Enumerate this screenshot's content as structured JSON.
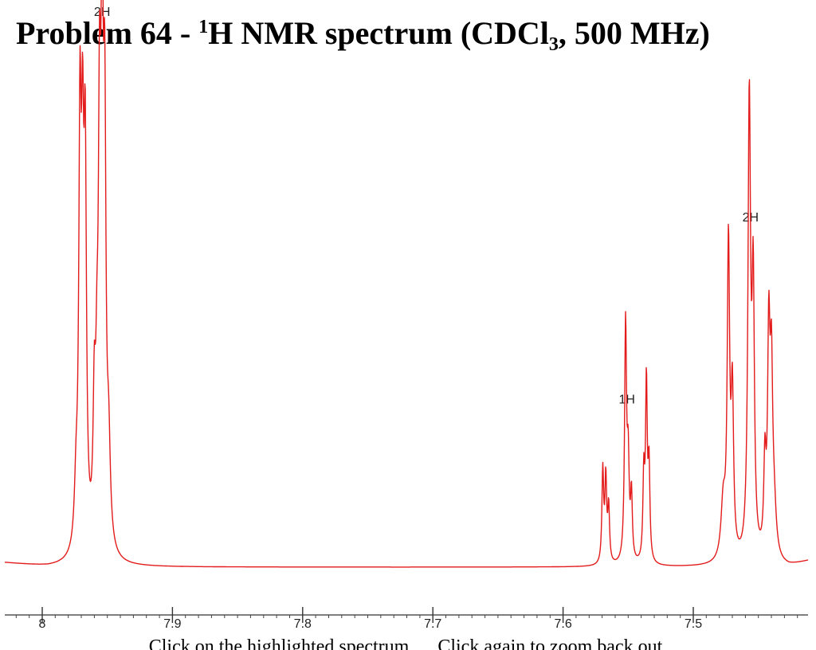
{
  "title": {
    "prefix": "Problem 64 - ",
    "sup": "1",
    "nucleus": "H NMR spectrum (CDCl",
    "sub": "3",
    "suffix": ", 500 MHz)"
  },
  "instruction": "Click on the highlighted spectrum … Click again to zoom back out.",
  "chart_data": {
    "type": "line",
    "xlabel": "",
    "ylabel": "",
    "x_unit": "ppm",
    "x_axis_reversed": true,
    "xlim": [
      8.03,
      7.41
    ],
    "x_ticks": [
      {
        "value": 8.0,
        "label": "8"
      },
      {
        "value": 7.9,
        "label": "7.9"
      },
      {
        "value": 7.8,
        "label": "7.8"
      },
      {
        "value": 7.7,
        "label": "7.7"
      },
      {
        "value": 7.6,
        "label": "7.6"
      },
      {
        "value": 7.5,
        "label": "7.5"
      }
    ],
    "ylim": [
      0,
      1
    ],
    "line_color": "#e31b1b",
    "baseline_level": 0.0,
    "peaks": [
      {
        "ppm": 7.971,
        "height": 0.86,
        "width": 0.0011
      },
      {
        "ppm": 7.969,
        "height": 0.7,
        "width": 0.0011
      },
      {
        "ppm": 7.967,
        "height": 0.78,
        "width": 0.0011
      },
      {
        "ppm": 7.96,
        "height": 0.28,
        "width": 0.0011
      },
      {
        "ppm": 7.958,
        "height": 0.25,
        "width": 0.0011
      },
      {
        "ppm": 7.956,
        "height": 0.8,
        "width": 0.0011
      },
      {
        "ppm": 7.954,
        "height": 1.0,
        "width": 0.0011
      },
      {
        "ppm": 7.952,
        "height": 0.82,
        "width": 0.0011
      },
      {
        "ppm": 7.974,
        "height": 0.12,
        "width": 0.0015
      },
      {
        "ppm": 7.949,
        "height": 0.2,
        "width": 0.0015
      },
      {
        "ppm": 7.5695,
        "height": 0.2,
        "width": 0.0008
      },
      {
        "ppm": 7.5672,
        "height": 0.18,
        "width": 0.0008
      },
      {
        "ppm": 7.565,
        "height": 0.12,
        "width": 0.0008
      },
      {
        "ppm": 7.552,
        "height": 0.51,
        "width": 0.0009
      },
      {
        "ppm": 7.55,
        "height": 0.2,
        "width": 0.0009
      },
      {
        "ppm": 7.5475,
        "height": 0.14,
        "width": 0.0008
      },
      {
        "ppm": 7.538,
        "height": 0.18,
        "width": 0.0008
      },
      {
        "ppm": 7.536,
        "height": 0.38,
        "width": 0.0008
      },
      {
        "ppm": 7.534,
        "height": 0.2,
        "width": 0.0008
      },
      {
        "ppm": 7.473,
        "height": 0.67,
        "width": 0.0011
      },
      {
        "ppm": 7.47,
        "height": 0.34,
        "width": 0.0011
      },
      {
        "ppm": 7.457,
        "height": 0.98,
        "width": 0.0012
      },
      {
        "ppm": 7.454,
        "height": 0.56,
        "width": 0.0011
      },
      {
        "ppm": 7.445,
        "height": 0.19,
        "width": 0.001
      },
      {
        "ppm": 7.442,
        "height": 0.46,
        "width": 0.0011
      },
      {
        "ppm": 7.44,
        "height": 0.36,
        "width": 0.0011
      },
      {
        "ppm": 7.477,
        "height": 0.12,
        "width": 0.002
      },
      {
        "ppm": 7.438,
        "height": 0.1,
        "width": 0.002
      }
    ],
    "integrations": [
      {
        "label": "2H",
        "ppm": 7.954
      },
      {
        "label": "1H",
        "ppm": 7.551
      },
      {
        "label": "2H",
        "ppm": 7.456
      }
    ]
  }
}
